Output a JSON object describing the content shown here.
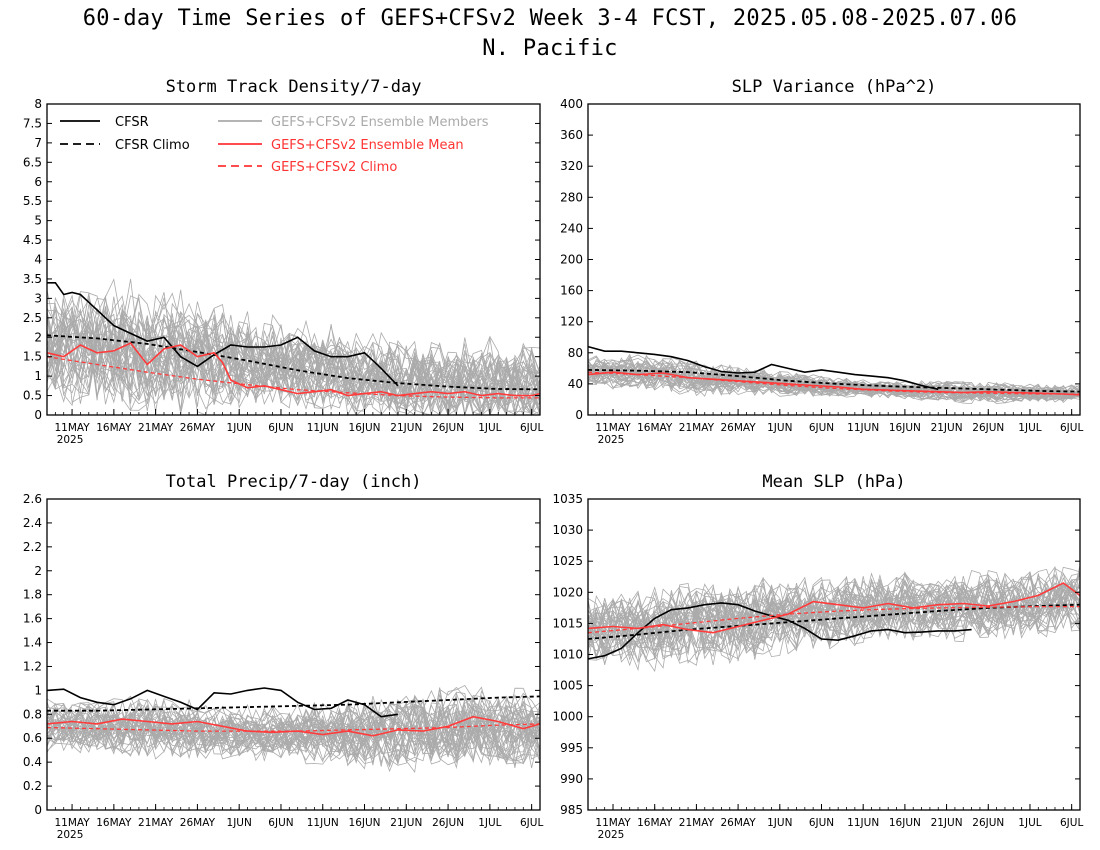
{
  "title": {
    "line1": "60-day Time Series of GEFS+CFSv2 Week 3-4 FCST, 2025.05.08-2025.07.06",
    "line2": "N. Pacific"
  },
  "x_tick_labels": [
    "11MAY",
    "16MAY",
    "21MAY",
    "26MAY",
    "1JUN",
    "6JUN",
    "11JUN",
    "16JUN",
    "21JUN",
    "26JUN",
    "1JUL",
    "6JUL"
  ],
  "x_year_label": "2025",
  "legend": [
    {
      "label": "CFSR",
      "color": "#000000",
      "dash": "solid"
    },
    {
      "label": "CFSR Climo",
      "color": "#000000",
      "dash": "dashed"
    },
    {
      "label": "GEFS+CFSv2 Ensemble Members",
      "color": "#aaaaaa",
      "dash": "solid"
    },
    {
      "label": "GEFS+CFSv2 Ensemble Mean",
      "color": "#ff3333",
      "dash": "solid"
    },
    {
      "label": "GEFS+CFSv2 Climo",
      "color": "#ff3333",
      "dash": "dashed"
    }
  ],
  "chart_data": [
    {
      "type": "line",
      "title": "Storm Track Density/7-day",
      "xlabel": "",
      "ylabel": "",
      "x_range_days": [
        0,
        59
      ],
      "ylim": [
        0,
        8
      ],
      "yticks": [
        "0",
        "0.5",
        "1",
        "1.5",
        "2",
        "2.5",
        "3",
        "3.5",
        "4",
        "4.5",
        "5",
        "5.5",
        "6",
        "6.5",
        "7",
        "7.5",
        "8"
      ],
      "legend_position": "top",
      "member_envelope": {
        "center": [
          1.9,
          1.8,
          1.7,
          1.6,
          1.5,
          1.4,
          1.2,
          1.0,
          0.9,
          0.8,
          0.8,
          0.8
        ],
        "spread": [
          1.3,
          1.4,
          1.5,
          1.4,
          1.2,
          1.0,
          1.0,
          1.0,
          1.0,
          1.0,
          1.0,
          1.0
        ],
        "count": 40
      },
      "series": [
        {
          "name": "CFSR",
          "style": "cfsr",
          "x": [
            0,
            1,
            2,
            3,
            4,
            5,
            6,
            8,
            10,
            12,
            14,
            16,
            18,
            20,
            22,
            24,
            26,
            28,
            30,
            32,
            34,
            36,
            38,
            39,
            40,
            42
          ],
          "values": [
            3.4,
            3.4,
            3.1,
            3.15,
            3.1,
            2.9,
            2.7,
            2.3,
            2.1,
            1.9,
            2.0,
            1.5,
            1.25,
            1.55,
            1.8,
            1.75,
            1.75,
            1.8,
            2.0,
            1.65,
            1.5,
            1.5,
            1.6,
            1.4,
            1.2,
            0.75
          ]
        },
        {
          "name": "CFSR Climo",
          "style": "cfsrclimo",
          "x": [
            0,
            6,
            12,
            18,
            24,
            30,
            36,
            42,
            48,
            54,
            59
          ],
          "values": [
            2.05,
            1.97,
            1.83,
            1.62,
            1.4,
            1.15,
            0.95,
            0.82,
            0.73,
            0.67,
            0.66
          ]
        },
        {
          "name": "GEFS+CFSv2 Ensemble Mean",
          "style": "mean",
          "x": [
            0,
            2,
            4,
            6,
            8,
            10,
            12,
            14,
            16,
            18,
            20,
            21,
            22,
            24,
            26,
            28,
            30,
            32,
            34,
            36,
            38,
            40,
            42,
            44,
            46,
            48,
            50,
            52,
            54,
            56,
            58,
            59
          ],
          "values": [
            1.6,
            1.5,
            1.8,
            1.6,
            1.65,
            1.85,
            1.3,
            1.7,
            1.8,
            1.5,
            1.6,
            1.35,
            0.9,
            0.7,
            0.75,
            0.65,
            0.55,
            0.6,
            0.65,
            0.5,
            0.55,
            0.6,
            0.5,
            0.55,
            0.6,
            0.55,
            0.6,
            0.5,
            0.55,
            0.5,
            0.5,
            0.55
          ]
        },
        {
          "name": "GEFS+CFSv2 Climo",
          "style": "meanclimo",
          "x": [
            0,
            6,
            12,
            18,
            24,
            30,
            36,
            42,
            48,
            54,
            59
          ],
          "values": [
            1.5,
            1.3,
            1.1,
            0.92,
            0.78,
            0.65,
            0.57,
            0.5,
            0.46,
            0.44,
            0.44
          ]
        }
      ]
    },
    {
      "type": "line",
      "title": "SLP Variance (hPa^2)",
      "xlabel": "",
      "ylabel": "",
      "x_range_days": [
        0,
        59
      ],
      "ylim": [
        0,
        400
      ],
      "yticks": [
        "0",
        "40",
        "80",
        "120",
        "160",
        "200",
        "240",
        "280",
        "320",
        "360",
        "400"
      ],
      "member_envelope": {
        "center": [
          58,
          55,
          50,
          45,
          42,
          38,
          34,
          32,
          30,
          29,
          28,
          28
        ],
        "spread": [
          18,
          20,
          20,
          18,
          15,
          12,
          10,
          10,
          12,
          12,
          10,
          10
        ],
        "count": 40
      },
      "series": [
        {
          "name": "CFSR",
          "style": "cfsr",
          "x": [
            0,
            2,
            4,
            6,
            8,
            10,
            12,
            14,
            16,
            18,
            20,
            22,
            24,
            26,
            28,
            30,
            32,
            34,
            36,
            38,
            40,
            42
          ],
          "values": [
            88,
            82,
            82,
            80,
            78,
            75,
            70,
            62,
            56,
            54,
            55,
            65,
            60,
            55,
            58,
            55,
            52,
            50,
            48,
            44,
            38,
            33
          ]
        },
        {
          "name": "CFSR Climo",
          "style": "cfsrclimo",
          "x": [
            0,
            6,
            12,
            18,
            24,
            30,
            36,
            42,
            48,
            54,
            59
          ],
          "values": [
            58,
            57,
            55,
            50,
            44,
            40,
            37,
            35,
            33,
            31,
            30
          ]
        },
        {
          "name": "GEFS+CFSv2 Ensemble Mean",
          "style": "mean",
          "x": [
            0,
            3,
            6,
            9,
            12,
            15,
            18,
            21,
            24,
            27,
            30,
            33,
            36,
            39,
            42,
            45,
            48,
            51,
            54,
            57,
            59
          ],
          "values": [
            52,
            55,
            52,
            54,
            48,
            46,
            44,
            42,
            40,
            38,
            36,
            33,
            32,
            31,
            30,
            29,
            30,
            29,
            28,
            27,
            26
          ]
        },
        {
          "name": "GEFS+CFSv2 Climo",
          "style": "meanclimo",
          "x": [
            0,
            6,
            12,
            18,
            24,
            30,
            36,
            42,
            48,
            54,
            59
          ],
          "values": [
            55,
            52,
            48,
            43,
            38,
            34,
            31,
            29,
            28,
            27,
            27
          ]
        }
      ]
    },
    {
      "type": "line",
      "title": "Total Precip/7-day (inch)",
      "xlabel": "",
      "ylabel": "",
      "x_range_days": [
        0,
        59
      ],
      "ylim": [
        0,
        2.6
      ],
      "yticks": [
        "0",
        "0.2",
        "0.4",
        "0.6",
        "0.8",
        "1",
        "1.2",
        "1.4",
        "1.6",
        "1.8",
        "2",
        "2.2",
        "2.4",
        "2.6"
      ],
      "member_envelope": {
        "center": [
          0.72,
          0.7,
          0.7,
          0.68,
          0.66,
          0.65,
          0.65,
          0.65,
          0.68,
          0.7,
          0.7,
          0.68
        ],
        "spread": [
          0.2,
          0.2,
          0.22,
          0.22,
          0.2,
          0.2,
          0.22,
          0.25,
          0.3,
          0.3,
          0.28,
          0.3
        ],
        "count": 40
      },
      "series": [
        {
          "name": "CFSR",
          "style": "cfsr",
          "x": [
            0,
            2,
            4,
            6,
            8,
            10,
            12,
            14,
            16,
            18,
            20,
            22,
            24,
            26,
            28,
            30,
            32,
            34,
            36,
            38,
            40,
            42
          ],
          "values": [
            1.0,
            1.01,
            0.94,
            0.9,
            0.88,
            0.93,
            1.0,
            0.95,
            0.9,
            0.84,
            0.98,
            0.97,
            1.0,
            1.02,
            1.0,
            0.9,
            0.84,
            0.85,
            0.92,
            0.88,
            0.78,
            0.8
          ]
        },
        {
          "name": "CFSR Climo",
          "style": "cfsrclimo",
          "x": [
            0,
            6,
            12,
            18,
            24,
            30,
            36,
            42,
            48,
            54,
            59
          ],
          "values": [
            0.83,
            0.83,
            0.84,
            0.85,
            0.86,
            0.87,
            0.88,
            0.9,
            0.92,
            0.94,
            0.95
          ]
        },
        {
          "name": "GEFS+CFSv2 Ensemble Mean",
          "style": "mean",
          "x": [
            0,
            3,
            6,
            9,
            12,
            15,
            18,
            21,
            24,
            27,
            30,
            33,
            36,
            39,
            42,
            45,
            48,
            51,
            54,
            57,
            59
          ],
          "values": [
            0.72,
            0.74,
            0.72,
            0.76,
            0.74,
            0.72,
            0.74,
            0.7,
            0.66,
            0.65,
            0.66,
            0.63,
            0.66,
            0.62,
            0.67,
            0.66,
            0.7,
            0.78,
            0.74,
            0.68,
            0.72
          ]
        },
        {
          "name": "GEFS+CFSv2 Climo",
          "style": "meanclimo",
          "x": [
            0,
            6,
            12,
            18,
            24,
            30,
            36,
            42,
            48,
            54,
            59
          ],
          "values": [
            0.69,
            0.68,
            0.67,
            0.66,
            0.66,
            0.66,
            0.67,
            0.68,
            0.69,
            0.71,
            0.72
          ]
        }
      ]
    },
    {
      "type": "line",
      "title": "Mean SLP (hPa)",
      "xlabel": "",
      "ylabel": "",
      "x_range_days": [
        0,
        59
      ],
      "ylim": [
        985,
        1035
      ],
      "yticks": [
        "985",
        "990",
        "995",
        "1000",
        "1005",
        "1010",
        "1015",
        "1020",
        "1025",
        "1030",
        "1035"
      ],
      "member_envelope": {
        "center": [
          1014,
          1014,
          1014.5,
          1015,
          1016,
          1016.5,
          1017,
          1017.5,
          1017.5,
          1018,
          1018,
          1019
        ],
        "spread": [
          5,
          5.5,
          6,
          6,
          5.5,
          5,
          5,
          5,
          5,
          5,
          5,
          5
        ],
        "count": 40
      },
      "series": [
        {
          "name": "CFSR",
          "style": "cfsr",
          "x": [
            0,
            2,
            4,
            6,
            8,
            10,
            12,
            14,
            16,
            18,
            20,
            22,
            24,
            26,
            28,
            30,
            32,
            34,
            36,
            38,
            40,
            42,
            44,
            46
          ],
          "values": [
            1009.3,
            1009.8,
            1011,
            1013.5,
            1015.8,
            1017.2,
            1017.5,
            1018,
            1018.3,
            1018,
            1017,
            1016.2,
            1015.5,
            1014.2,
            1012.5,
            1012.3,
            1013,
            1013.8,
            1014,
            1013.5,
            1013.6,
            1013.8,
            1013.8,
            1014
          ]
        },
        {
          "name": "CFSR Climo",
          "style": "cfsrclimo",
          "x": [
            0,
            6,
            12,
            18,
            24,
            30,
            36,
            42,
            48,
            54,
            59
          ],
          "values": [
            1012.5,
            1013.2,
            1014,
            1014.6,
            1015.2,
            1015.8,
            1016.4,
            1017,
            1017.5,
            1017.8,
            1018
          ]
        },
        {
          "name": "GEFS+CFSv2 Ensemble Mean",
          "style": "mean",
          "x": [
            0,
            3,
            6,
            9,
            12,
            15,
            18,
            21,
            24,
            27,
            30,
            33,
            36,
            39,
            42,
            45,
            48,
            51,
            54,
            57,
            59
          ],
          "values": [
            1014.2,
            1014.5,
            1014.2,
            1014.8,
            1014,
            1013.5,
            1014.5,
            1015.5,
            1016.5,
            1018.5,
            1018,
            1017.5,
            1018.2,
            1017.5,
            1018,
            1018.2,
            1017.8,
            1018.5,
            1019.5,
            1021.5,
            1019.5
          ]
        },
        {
          "name": "GEFS+CFSv2 Climo",
          "style": "meanclimo",
          "x": [
            0,
            6,
            12,
            18,
            24,
            30,
            36,
            42,
            48,
            54,
            59
          ],
          "values": [
            1013.5,
            1014.2,
            1015,
            1015.8,
            1016.5,
            1017,
            1017.3,
            1017.5,
            1017.6,
            1017.7,
            1017.7
          ]
        }
      ]
    }
  ]
}
